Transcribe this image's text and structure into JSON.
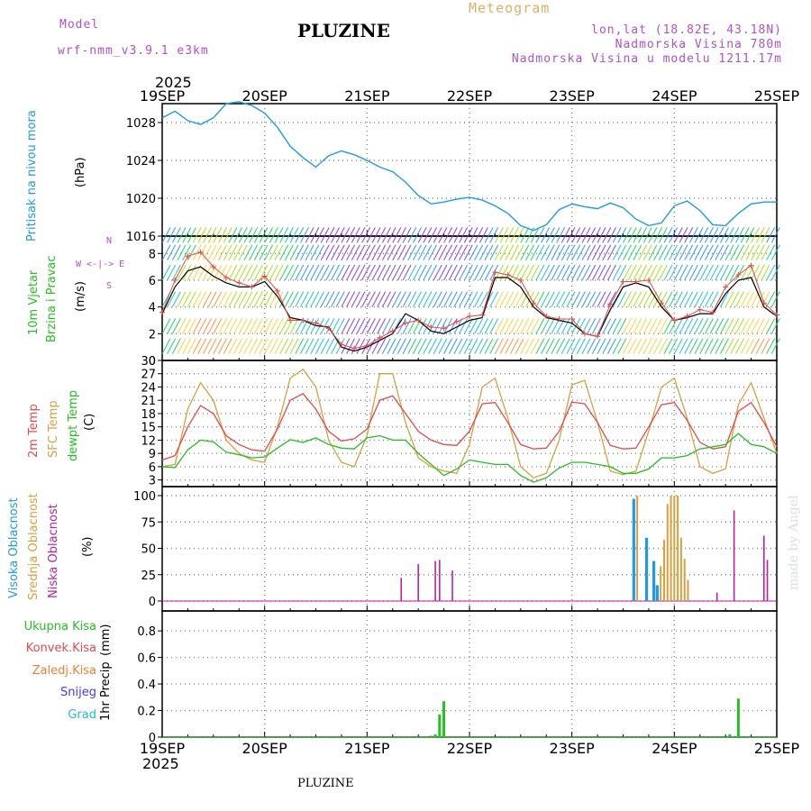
{
  "header": {
    "model_label": "Model",
    "model_name": "wrf-nmm_v3.9.1  e3km",
    "station": "PLUZINE",
    "product": "Meteogram",
    "coords": "lon,lat (18.82E, 43.18N)",
    "altitude": "Nadmorska Visina 780m",
    "model_altitude": "Nadmorska Visina u modelu 1211.17m",
    "year_top": "2025",
    "year_bottom": "2025",
    "footer": "PLUZINE",
    "credit": "made by Angel"
  },
  "colors": {
    "pressure": "#1e9be8",
    "temp2m": "#e84848",
    "sfc": "#d9a040",
    "dewpt": "#22c022",
    "high_cloud": "#1e9be8",
    "mid_cloud": "#d9a040",
    "low_cloud": "#c020a0",
    "precip_total": "#22c022",
    "precip_conv": "#e84848",
    "freezing": "#f08030",
    "snow": "#4040e0",
    "hail": "#20c0c0",
    "header_purple": "#b050d0",
    "header_orange": "#e0b060"
  },
  "chart_data": {
    "type": "line",
    "x_ticks": [
      "19SEP",
      "20SEP",
      "21SEP",
      "22SEP",
      "23SEP",
      "24SEP",
      "25SEP"
    ],
    "panels": {
      "pressure": {
        "ylabel_left": "Pritisak na nivou mora",
        "unit": "(hPa)",
        "ylim": [
          1016,
          1030
        ],
        "yticks": [
          "1016",
          "1020",
          "1024",
          "1028"
        ],
        "x_hours": [
          0,
          3,
          6,
          9,
          12,
          15,
          18,
          21,
          24,
          27,
          30,
          33,
          36,
          39,
          42,
          45,
          48,
          51,
          54,
          57,
          60,
          63,
          66,
          69,
          72,
          75,
          78,
          81,
          84,
          87,
          90,
          93,
          96,
          99,
          102,
          105,
          108,
          111,
          114,
          117,
          120,
          123,
          126,
          129,
          132,
          135,
          138,
          141,
          144
        ],
        "values": [
          1028.5,
          1029.2,
          1028.2,
          1027.8,
          1028.5,
          1030.0,
          1030.2,
          1029.8,
          1029.0,
          1027.5,
          1025.5,
          1024.3,
          1023.3,
          1024.5,
          1025.0,
          1024.6,
          1024.0,
          1023.3,
          1022.8,
          1021.7,
          1020.3,
          1019.4,
          1019.6,
          1019.9,
          1020.1,
          1019.8,
          1019.2,
          1018.4,
          1017.1,
          1016.6,
          1017.2,
          1018.8,
          1019.4,
          1019.1,
          1018.9,
          1019.5,
          1019.0,
          1017.8,
          1017.1,
          1017.4,
          1019.2,
          1019.7,
          1018.7,
          1017.2,
          1017.1,
          1018.4,
          1019.4,
          1019.6,
          1019.6
        ]
      },
      "wind": {
        "ylabel_left": "10m Vjetar",
        "ylabel_left2": "Brzina i Pravac",
        "unit": "(m/s)",
        "compass": "W  <-|->  E",
        "compass_n": "N",
        "compass_s": "S",
        "ylim": [
          0,
          9.3
        ],
        "yticks": [
          "0",
          "2",
          "4",
          "6",
          "8"
        ],
        "x_hours": [
          0,
          3,
          6,
          9,
          12,
          15,
          18,
          21,
          24,
          27,
          30,
          33,
          36,
          39,
          42,
          45,
          48,
          51,
          54,
          57,
          60,
          63,
          66,
          69,
          72,
          75,
          78,
          81,
          84,
          87,
          90,
          93,
          96,
          99,
          102,
          105,
          108,
          111,
          114,
          117,
          120,
          123,
          126,
          129,
          132,
          135,
          138,
          141,
          144
        ],
        "speed": [
          3.5,
          5.5,
          6.7,
          7.0,
          6.3,
          5.8,
          5.5,
          5.5,
          5.9,
          4.8,
          3.2,
          3.0,
          2.6,
          2.5,
          1.0,
          0.7,
          1.0,
          1.5,
          2.0,
          3.5,
          3.0,
          2.2,
          2.0,
          2.5,
          3.0,
          3.2,
          6.2,
          6.2,
          5.5,
          4.0,
          3.2,
          3.0,
          2.8,
          2.0,
          1.8,
          3.8,
          5.5,
          5.8,
          5.5,
          4.0,
          3.0,
          3.2,
          3.5,
          3.5,
          5.0,
          6.0,
          6.2,
          4.0,
          3.3
        ],
        "gust": [
          3.6,
          6.0,
          7.8,
          8.1,
          7.0,
          6.2,
          5.8,
          5.5,
          6.3,
          5.2,
          3.0,
          3.0,
          2.8,
          2.4,
          1.2,
          0.9,
          1.1,
          1.7,
          2.2,
          2.8,
          3.0,
          2.5,
          2.4,
          2.9,
          3.3,
          3.4,
          6.6,
          6.4,
          6.0,
          4.3,
          3.3,
          3.1,
          3.1,
          2.0,
          1.8,
          4.2,
          5.9,
          5.9,
          6.0,
          4.3,
          3.0,
          3.3,
          3.8,
          3.6,
          5.5,
          6.4,
          7.1,
          4.3,
          3.4
        ]
      },
      "temperature": {
        "label_2m": "2m Temp",
        "label_sfc": "SFC Temp",
        "label_dewpt": "dewpt Temp",
        "unit": "(C)",
        "ylim": [
          1.5,
          30
        ],
        "yticks": [
          "3",
          "6",
          "9",
          "12",
          "15",
          "18",
          "21",
          "24",
          "27",
          "30"
        ],
        "x_hours": [
          0,
          3,
          6,
          9,
          12,
          15,
          18,
          21,
          24,
          27,
          30,
          33,
          36,
          39,
          42,
          45,
          48,
          51,
          54,
          57,
          60,
          63,
          66,
          69,
          72,
          75,
          78,
          81,
          84,
          87,
          90,
          93,
          96,
          99,
          102,
          105,
          108,
          111,
          114,
          117,
          120,
          123,
          126,
          129,
          132,
          135,
          138,
          141,
          144
        ],
        "t2m": [
          7.5,
          8.5,
          15.0,
          19.8,
          18.0,
          13.0,
          11.0,
          9.8,
          9.5,
          14.5,
          21.0,
          22.5,
          19.0,
          14.0,
          11.8,
          12.3,
          14.5,
          21.0,
          22.0,
          18.0,
          14.0,
          12.0,
          11.0,
          10.8,
          14.0,
          20.2,
          20.5,
          16.0,
          11.0,
          10.0,
          10.2,
          14.0,
          20.6,
          20.2,
          16.0,
          10.8,
          10.0,
          10.2,
          15.0,
          20.0,
          20.5,
          16.5,
          11.5,
          10.0,
          10.5,
          18.5,
          20.5,
          16.0,
          10.5
        ],
        "sfc": [
          6.0,
          6.5,
          19.0,
          25.0,
          21.0,
          12.0,
          9.0,
          7.5,
          7.0,
          15.0,
          26.0,
          28.0,
          24.0,
          12.0,
          7.0,
          6.0,
          13.0,
          27.0,
          27.0,
          16.0,
          8.0,
          6.0,
          5.0,
          4.5,
          11.0,
          24.0,
          26.0,
          17.0,
          6.0,
          3.5,
          4.5,
          12.0,
          24.5,
          25.5,
          16.0,
          5.0,
          4.2,
          5.0,
          14.0,
          24.0,
          26.0,
          17.0,
          6.0,
          4.5,
          5.5,
          20.0,
          25.0,
          17.0,
          9.0
        ],
        "dewpt": [
          6.0,
          5.8,
          9.8,
          12.0,
          11.6,
          9.3,
          8.7,
          8.0,
          8.2,
          10.2,
          12.1,
          11.5,
          12.5,
          11.0,
          10.2,
          10.0,
          12.5,
          13.0,
          12.0,
          12.0,
          9.0,
          6.5,
          4.0,
          5.5,
          7.5,
          7.0,
          6.5,
          6.5,
          4.0,
          2.5,
          3.5,
          5.7,
          7.0,
          7.0,
          6.5,
          6.0,
          4.5,
          4.5,
          5.5,
          8.0,
          8.0,
          8.5,
          10.0,
          10.5,
          11.0,
          13.5,
          11.0,
          10.5,
          9.0
        ]
      },
      "clouds": {
        "label_high": "Visoka Oblacnost",
        "label_mid": "Srednja Oblacnost",
        "label_low": "Niska Oblacnost",
        "unit": "(%)",
        "ylim": [
          0,
          100
        ],
        "yticks": [
          "0",
          "25",
          "50",
          "75",
          "100"
        ],
        "high": [
          {
            "h": 110.5,
            "v": 97
          },
          {
            "h": 113.5,
            "v": 60
          },
          {
            "h": 115.2,
            "v": 38
          },
          {
            "h": 116.0,
            "v": 15
          }
        ],
        "mid": [
          {
            "h": 111.3,
            "v": 100
          },
          {
            "h": 116.8,
            "v": 33
          },
          {
            "h": 117.6,
            "v": 58
          },
          {
            "h": 118.4,
            "v": 92
          },
          {
            "h": 119.2,
            "v": 100
          },
          {
            "h": 120.0,
            "v": 100
          },
          {
            "h": 120.8,
            "v": 100
          },
          {
            "h": 121.6,
            "v": 60
          },
          {
            "h": 122.4,
            "v": 40
          },
          {
            "h": 123.2,
            "v": 20
          }
        ],
        "low": [
          {
            "h": 56.0,
            "v": 22
          },
          {
            "h": 60.0,
            "v": 35
          },
          {
            "h": 64.0,
            "v": 38
          },
          {
            "h": 65.0,
            "v": 39
          },
          {
            "h": 68.0,
            "v": 29
          },
          {
            "h": 130.0,
            "v": 8
          },
          {
            "h": 134.0,
            "v": 86
          },
          {
            "h": 141.0,
            "v": 62
          },
          {
            "h": 141.8,
            "v": 39
          }
        ]
      },
      "precip": {
        "legend_total": "Ukupna  Kisa",
        "legend_conv": "Konvek.Kisa",
        "legend_freezing": "Zaledj.Kisa",
        "legend_snow": "Snijeg",
        "legend_hail": "Grad",
        "ylabel": "1hr Precip",
        "unit": "(mm)",
        "ylim": [
          0,
          0.95
        ],
        "yticks": [
          "0",
          "0.2",
          "0.4",
          "0.6",
          "0.8"
        ],
        "bars": [
          {
            "h": 63.0,
            "v": 0.01
          },
          {
            "h": 64.0,
            "v": 0.02
          },
          {
            "h": 65.0,
            "v": 0.17
          },
          {
            "h": 66.0,
            "v": 0.27
          },
          {
            "h": 133.0,
            "v": 0.02
          },
          {
            "h": 135.0,
            "v": 0.29
          }
        ]
      }
    }
  }
}
